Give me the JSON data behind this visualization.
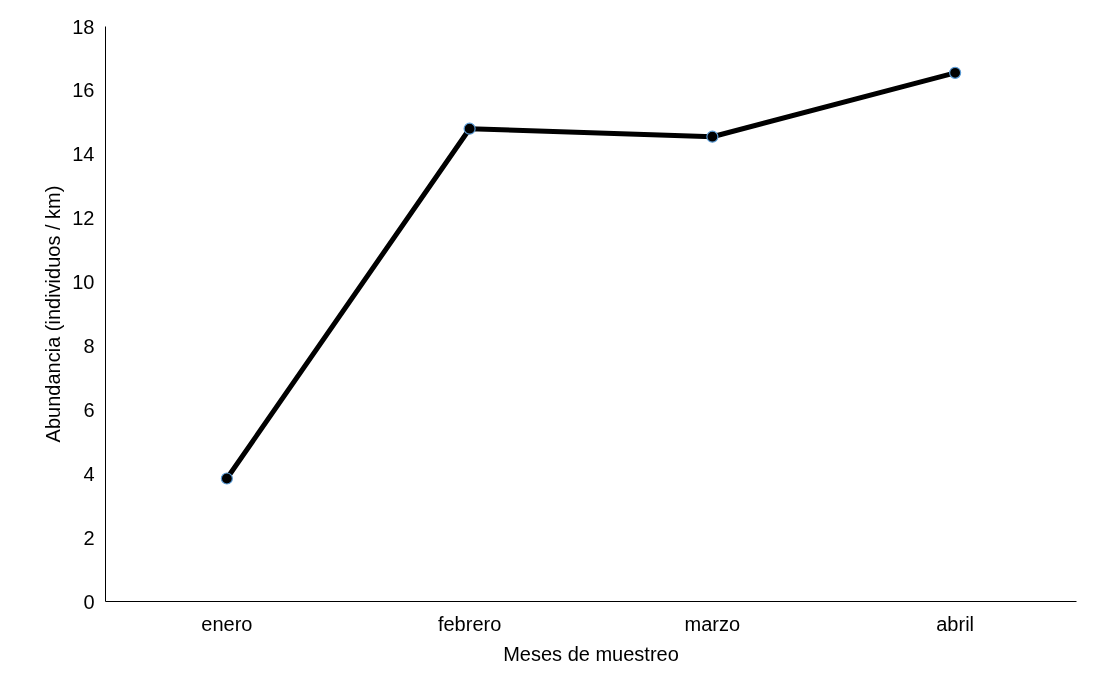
{
  "chart_data": {
    "type": "line",
    "xlabel": "Meses de muestreo",
    "ylabel": "Abundancia (individuos / km)",
    "categories": [
      "enero",
      "febrero",
      "marzo",
      "abril"
    ],
    "series": [
      {
        "color": "#000000",
        "values": [
          3.85,
          14.8,
          14.55,
          16.55
        ]
      }
    ],
    "ylim": [
      0,
      18
    ],
    "yticks": [
      0,
      2,
      4,
      6,
      8,
      10,
      12,
      14,
      16,
      18
    ],
    "grid": false,
    "marker": "circle",
    "line_style": "solid"
  }
}
